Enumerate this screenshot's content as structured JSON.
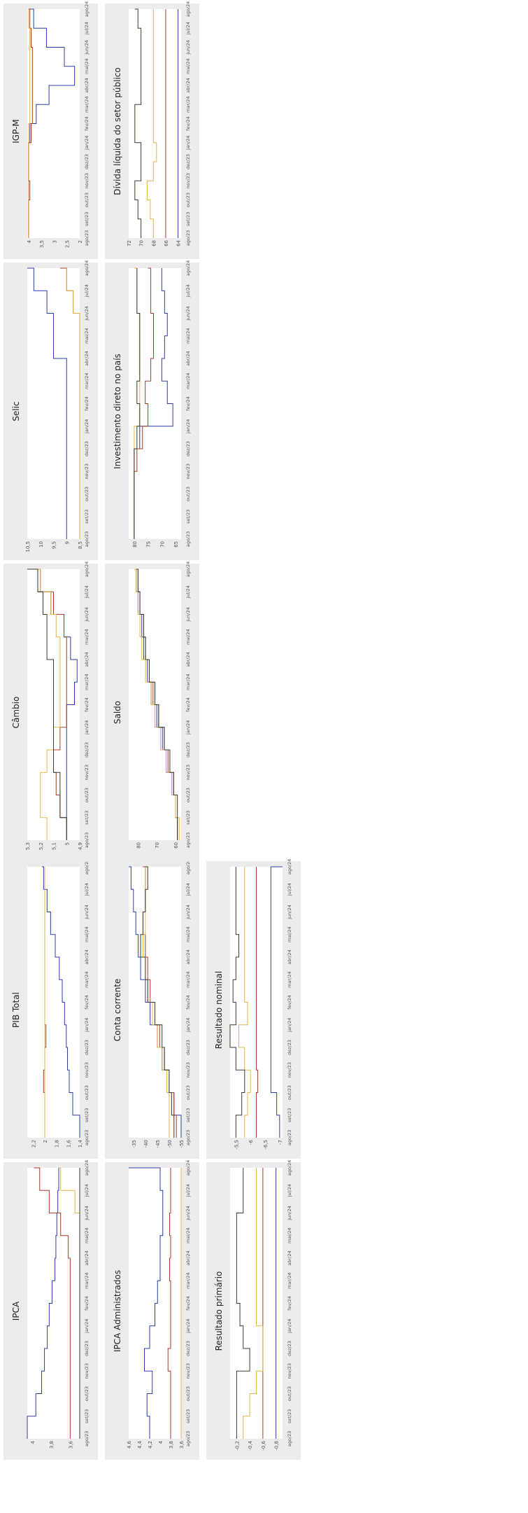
{
  "chart_data": [
    {
      "id": "ipca",
      "type": "line",
      "title": "IPCA",
      "x": [
        "ago/23",
        "set/23",
        "out/23",
        "nov/23",
        "dez/23",
        "jan/24",
        "fev/24",
        "mar/24",
        "abr/24",
        "mai/24",
        "jun/24",
        "jul/24",
        "ago/24"
      ],
      "ylim": [
        3.5,
        4.05
      ],
      "yticks": [
        "4",
        "3,8",
        "3,6"
      ],
      "series": [
        {
          "color": "#2b3ea8",
          "values": [
            4.05,
            3.96,
            3.9,
            3.87,
            3.84,
            3.82,
            3.79,
            3.76,
            3.75,
            3.74,
            3.73,
            3.72,
            3.72
          ]
        },
        {
          "color": "#a83a2a",
          "values": [
            3.6,
            3.6,
            3.6,
            3.6,
            3.6,
            3.6,
            3.6,
            3.6,
            3.62,
            3.7,
            3.82,
            3.92,
            3.98
          ]
        },
        {
          "color": "#e6b54a",
          "values": [
            3.5,
            3.5,
            3.5,
            3.5,
            3.5,
            3.5,
            3.5,
            3.5,
            3.5,
            3.5,
            3.55,
            3.7,
            3.72
          ]
        },
        {
          "color": "#3a3a2a",
          "values": [
            3.5,
            3.5,
            3.5,
            3.5,
            3.5,
            3.5,
            3.5,
            3.5,
            3.5,
            3.5,
            3.5,
            3.5,
            3.5
          ]
        }
      ]
    },
    {
      "id": "pib",
      "type": "line",
      "title": "PIB Total",
      "x": [
        "ago/23",
        "set/23",
        "out/23",
        "nov/23",
        "dez/23",
        "jan/24",
        "fev/24",
        "mar/24",
        "abr/24",
        "mai/24",
        "jun/24",
        "jul/24",
        "ago/24"
      ],
      "ylim": [
        1.4,
        2.3
      ],
      "yticks": [
        "2,2",
        "2",
        "1,8",
        "1,6",
        "1,4"
      ],
      "series": [
        {
          "color": "#2b3ea8",
          "values": [
            1.4,
            1.52,
            1.58,
            1.61,
            1.63,
            1.66,
            1.7,
            1.75,
            1.82,
            1.9,
            1.96,
            2.02,
            2.05
          ]
        },
        {
          "color": "#a83a2a",
          "values": [
            2.0,
            2.0,
            2.02,
            2.0,
            1.98,
            2.0,
            2.0,
            2.0,
            2.0,
            2.0,
            2.0,
            2.0,
            2.0
          ]
        },
        {
          "color": "#e6b54a",
          "values": [
            2.0,
            2.0,
            2.0,
            2.0,
            2.0,
            2.0,
            2.0,
            2.0,
            2.0,
            2.0,
            2.0,
            2.0,
            2.0
          ]
        }
      ]
    },
    {
      "id": "cambio",
      "type": "line",
      "title": "Câmbio",
      "x": [
        "ago/23",
        "set/23",
        "out/23",
        "nov/23",
        "dez/23",
        "jan/24",
        "fev/24",
        "mar/24",
        "abr/24",
        "mai/24",
        "jun/24",
        "jul/24",
        "ago/24"
      ],
      "ylim": [
        4.9,
        5.3
      ],
      "yticks": [
        "5,3",
        "5,2",
        "5,1",
        "5",
        "4,9"
      ],
      "series": [
        {
          "color": "#2b3ea8",
          "values": [
            5.0,
            5.0,
            5.0,
            5.0,
            5.0,
            5.0,
            4.94,
            4.92,
            4.97,
            5.02,
            5.12,
            5.22,
            5.3
          ]
        },
        {
          "color": "#a83a2a",
          "values": [
            5.0,
            5.05,
            5.08,
            5.1,
            5.05,
            5.0,
            5.0,
            5.0,
            5.0,
            5.02,
            5.1,
            5.2,
            5.28
          ]
        },
        {
          "color": "#e6b54a",
          "values": [
            5.15,
            5.2,
            5.2,
            5.15,
            5.1,
            5.05,
            5.05,
            5.05,
            5.05,
            5.08,
            5.12,
            5.2,
            5.28
          ]
        },
        {
          "color": "#3a3a2a",
          "values": [
            5.0,
            5.05,
            5.05,
            5.1,
            5.1,
            5.1,
            5.1,
            5.1,
            5.15,
            5.15,
            5.18,
            5.22,
            5.3
          ]
        }
      ]
    },
    {
      "id": "selic",
      "type": "line",
      "title": "Selic",
      "x": [
        "ago/23",
        "set/23",
        "out/23",
        "nov/23",
        "dez/23",
        "jan/24",
        "fev/24",
        "mar/24",
        "abr/24",
        "mai/24",
        "jun/24",
        "jul/24",
        "ago/24"
      ],
      "ylim": [
        8.5,
        10.5
      ],
      "yticks": [
        "10,5",
        "10",
        "9,5",
        "9",
        "8,5"
      ],
      "series": [
        {
          "color": "#2b3ea8",
          "values": [
            9.0,
            9.0,
            9.0,
            9.0,
            9.0,
            9.0,
            9.0,
            9.0,
            9.5,
            9.5,
            9.75,
            10.25,
            10.5
          ]
        },
        {
          "color": "#a83a2a",
          "values": [
            8.5,
            8.5,
            8.5,
            8.5,
            8.5,
            8.5,
            8.5,
            8.5,
            8.5,
            8.5,
            8.75,
            9.0,
            9.25
          ]
        },
        {
          "color": "#e6b54a",
          "values": [
            8.5,
            8.5,
            8.5,
            8.5,
            8.5,
            8.5,
            8.5,
            8.5,
            8.5,
            8.5,
            8.75,
            9.0,
            9.0
          ]
        }
      ]
    },
    {
      "id": "igpm",
      "type": "line",
      "title": "IGP-M",
      "x": [
        "ago/23",
        "set/23",
        "out/23",
        "nov/23",
        "dez/23",
        "jan/24",
        "fev/24",
        "mar/24",
        "abr/24",
        "mai/24",
        "jun/24",
        "jul/24",
        "ago/24"
      ],
      "ylim": [
        2,
        4.05
      ],
      "yticks": [
        "4",
        "3,5",
        "3",
        "2,5",
        "2"
      ],
      "series": [
        {
          "color": "#2b3ea8",
          "values": [
            4.0,
            4.0,
            4.0,
            4.0,
            4.0,
            3.95,
            3.7,
            3.2,
            2.2,
            2.6,
            3.3,
            3.8,
            4.0
          ]
        },
        {
          "color": "#a83a2a",
          "values": [
            4.0,
            4.0,
            3.95,
            4.0,
            4.0,
            3.9,
            3.85,
            3.85,
            3.85,
            3.85,
            3.9,
            3.95,
            4.0
          ]
        },
        {
          "color": "#e6b54a",
          "values": [
            4.0,
            4.0,
            4.0,
            4.0,
            4.0,
            4.0,
            3.95,
            3.95,
            3.95,
            3.95,
            3.95,
            4.0,
            4.0
          ]
        }
      ]
    },
    {
      "id": "ipca_adm",
      "type": "line",
      "title": "IPCA Administrados",
      "x": [
        "ago/23",
        "set/23",
        "out/23",
        "nov/23",
        "dez/23",
        "jan/24",
        "fev/24",
        "mar/24",
        "abr/24",
        "mai/24",
        "jun/24",
        "jul/24",
        "ago/24"
      ],
      "ylim": [
        3.6,
        4.6
      ],
      "yticks": [
        "4,6",
        "4,4",
        "4,2",
        "4",
        "3,8",
        "3,6"
      ],
      "series": [
        {
          "color": "#2b3ea8",
          "values": [
            4.2,
            4.25,
            4.15,
            4.3,
            4.2,
            4.1,
            4.05,
            4.0,
            4.0,
            3.95,
            3.95,
            4.0,
            4.6
          ]
        },
        {
          "color": "#a83a2a",
          "values": [
            3.8,
            3.8,
            3.8,
            3.85,
            3.8,
            3.8,
            3.8,
            3.82,
            3.8,
            3.82,
            3.8,
            3.8,
            3.8
          ]
        },
        {
          "color": "#e6b54a",
          "values": [
            3.6,
            3.6,
            3.6,
            3.6,
            3.6,
            3.6,
            3.6,
            3.6,
            3.6,
            3.6,
            3.6,
            3.6,
            3.6
          ]
        }
      ]
    },
    {
      "id": "conta_corrente",
      "type": "line",
      "title": "Conta corrente",
      "x": [
        "ago/23",
        "set/23",
        "out/23",
        "nov/23",
        "dez/23",
        "jan/24",
        "fev/24",
        "mar/24",
        "abr/24",
        "mai/24",
        "jun/24",
        "jul/24",
        "ago/24"
      ],
      "ylim": [
        -55,
        -33
      ],
      "yticks": [
        "-35",
        "-40",
        "-45",
        "-50",
        "-55"
      ],
      "series": [
        {
          "color": "#2b3ea8",
          "values": [
            -55,
            -52,
            -50,
            -47,
            -45,
            -42,
            -40,
            -38,
            -37,
            -36,
            -35,
            -34,
            -33
          ]
        },
        {
          "color": "#a83a2a",
          "values": [
            -53,
            -52,
            -50,
            -48,
            -46,
            -44,
            -42,
            -41,
            -40,
            -39,
            -40,
            -40,
            -39
          ]
        },
        {
          "color": "#e6b54a",
          "values": [
            -50,
            -50,
            -49,
            -47,
            -45,
            -43,
            -41,
            -40,
            -39,
            -40,
            -40,
            -40,
            -40
          ]
        },
        {
          "color": "#3a3a2a",
          "values": [
            -52,
            -51,
            -50,
            -48,
            -47,
            -44,
            -41,
            -40,
            -38,
            -39,
            -40,
            -41,
            -40
          ]
        }
      ]
    },
    {
      "id": "saldo",
      "type": "line",
      "title": "Saldo",
      "x": [
        "ago/23",
        "set/23",
        "out/23",
        "nov/23",
        "dez/23",
        "jan/24",
        "fev/24",
        "mar/24",
        "abr/24",
        "mai/24",
        "jun/24",
        "jul/24",
        "ago/24"
      ],
      "ylim": [
        57,
        85
      ],
      "yticks": [
        "80",
        "70",
        "60"
      ],
      "series": [
        {
          "color": "#2b3ea8",
          "values": [
            59,
            60,
            62,
            65,
            67,
            70,
            73,
            75,
            77,
            78,
            80,
            81,
            82
          ]
        },
        {
          "color": "#a83a2a",
          "values": [
            59,
            60,
            61,
            64,
            66,
            69,
            72,
            74,
            76,
            77,
            79,
            80,
            81
          ]
        },
        {
          "color": "#e6b54a",
          "values": [
            58,
            60,
            62,
            65,
            68,
            71,
            73,
            76,
            78,
            79,
            80,
            81,
            82
          ]
        },
        {
          "color": "#3a3a2a",
          "values": [
            59,
            59,
            61,
            63,
            66,
            69,
            71,
            74,
            76,
            77,
            79,
            80,
            81
          ]
        }
      ]
    },
    {
      "id": "idp",
      "type": "line",
      "title": "Investimento direto no país",
      "x": [
        "ago/23",
        "set/23",
        "out/23",
        "nov/23",
        "dez/23",
        "jan/24",
        "fev/24",
        "mar/24",
        "abr/24",
        "mai/24",
        "jun/24",
        "jul/24",
        "ago/24"
      ],
      "ylim": [
        63,
        82
      ],
      "yticks": [
        "80",
        "75",
        "70",
        "65"
      ],
      "series": [
        {
          "color": "#2b3ea8",
          "values": [
            80,
            80,
            80,
            80,
            78,
            66,
            68,
            70,
            69,
            68,
            69,
            70,
            70
          ]
        },
        {
          "color": "#a83a2a",
          "values": [
            80,
            80,
            80,
            79,
            77,
            75,
            76,
            74,
            73,
            73,
            74,
            74,
            75
          ]
        },
        {
          "color": "#e6b54a",
          "values": [
            80,
            80,
            80,
            80,
            80,
            78,
            78,
            78,
            78,
            78,
            79,
            79,
            80
          ]
        },
        {
          "color": "#3a3a2a",
          "values": [
            80,
            80,
            80,
            80,
            79,
            78,
            79,
            78,
            78,
            78,
            79,
            79,
            79
          ]
        }
      ]
    },
    {
      "id": "divida",
      "type": "line",
      "title": "Dívida líquida do setor público",
      "x": [
        "ago/23",
        "set/23",
        "out/23",
        "nov/23",
        "dez/23",
        "jan/24",
        "fev/24",
        "mar/24",
        "abr/24",
        "mai/24",
        "jun/24",
        "jul/24",
        "ago/24"
      ],
      "ylim": [
        63.5,
        72
      ],
      "yticks": [
        "72",
        "70",
        "68",
        "66",
        "64"
      ],
      "series": [
        {
          "color": "#2b3ea8",
          "values": [
            64,
            64,
            64,
            64,
            64,
            64,
            64,
            64,
            64,
            64,
            64,
            64,
            64
          ]
        },
        {
          "color": "#a83a2a",
          "values": [
            66,
            66,
            66,
            66,
            66,
            66,
            66,
            66,
            66,
            66,
            66,
            66,
            66
          ]
        },
        {
          "color": "#e6b54a",
          "values": [
            68,
            68.5,
            69,
            68,
            67.5,
            68,
            68,
            68,
            68,
            68,
            68,
            68,
            68
          ]
        },
        {
          "color": "#3a3a2a",
          "values": [
            70,
            70.5,
            71,
            70,
            70,
            71,
            71,
            70,
            70,
            70,
            70,
            70.5,
            71
          ]
        }
      ]
    },
    {
      "id": "resultado_primario",
      "type": "line",
      "title": "Resultado primário",
      "x": [
        "ago/23",
        "set/23",
        "out/23",
        "nov/23",
        "dez/23",
        "jan/24",
        "fev/24",
        "mar/24",
        "abr/24",
        "mai/24",
        "jun/24",
        "jul/24",
        "ago/24"
      ],
      "ylim": [
        -0.9,
        -0.1
      ],
      "yticks": [
        "-0,2",
        "-0,4",
        "-0,6",
        "-0,8"
      ],
      "series": [
        {
          "color": "#2b3ea8",
          "values": [
            -0.8,
            -0.8,
            -0.8,
            -0.8,
            -0.8,
            -0.8,
            -0.8,
            -0.8,
            -0.8,
            -0.8,
            -0.8,
            -0.8,
            -0.8
          ]
        },
        {
          "color": "#a83a2a",
          "values": [
            -0.6,
            -0.6,
            -0.6,
            -0.6,
            -0.6,
            -0.6,
            -0.6,
            -0.6,
            -0.6,
            -0.6,
            -0.6,
            -0.6,
            -0.6
          ]
        },
        {
          "color": "#e6b54a",
          "values": [
            -0.3,
            -0.4,
            -0.5,
            -0.6,
            -0.6,
            -0.5,
            -0.5,
            -0.5,
            -0.5,
            -0.5,
            -0.5,
            -0.5,
            -0.5
          ]
        },
        {
          "color": "#3a3a2a",
          "values": [
            -0.2,
            -0.2,
            -0.2,
            -0.4,
            -0.3,
            -0.25,
            -0.2,
            -0.2,
            -0.2,
            -0.2,
            -0.3,
            -0.3,
            -0.3
          ]
        }
      ]
    },
    {
      "id": "resultado_nominal",
      "type": "line",
      "title": "Resultado nominal",
      "x": [
        "ago/23",
        "set/23",
        "out/23",
        "nov/23",
        "dez/23",
        "jan/24",
        "fev/24",
        "mar/24",
        "abr/24",
        "mai/24",
        "jun/24",
        "jul/24",
        "ago/24"
      ],
      "ylim": [
        -7.1,
        -5.3
      ],
      "yticks": [
        "-5,5",
        "-6",
        "-6,5",
        "-7"
      ],
      "series": [
        {
          "color": "#2b3ea8",
          "values": [
            -7.0,
            -6.9,
            -6.7,
            -6.7,
            -6.7,
            -6.7,
            -6.7,
            -6.7,
            -6.7,
            -6.7,
            -6.7,
            -6.7,
            -7.1
          ]
        },
        {
          "color": "#a83a2a",
          "values": [
            -6.2,
            -6.2,
            -6.25,
            -6.2,
            -6.2,
            -6.2,
            -6.2,
            -6.2,
            -6.2,
            -6.2,
            -6.2,
            -6.2,
            -6.2
          ]
        },
        {
          "color": "#e6b54a",
          "values": [
            -5.8,
            -5.9,
            -6.0,
            -5.8,
            -5.6,
            -5.9,
            -5.8,
            -5.8,
            -5.8,
            -5.8,
            -5.8,
            -5.8,
            -5.8
          ]
        },
        {
          "color": "#3a3a2a",
          "values": [
            -5.5,
            -5.7,
            -5.8,
            -5.5,
            -5.3,
            -5.5,
            -5.4,
            -5.5,
            -5.6,
            -5.5,
            -5.5,
            -5.5,
            -5.5
          ]
        }
      ]
    }
  ]
}
